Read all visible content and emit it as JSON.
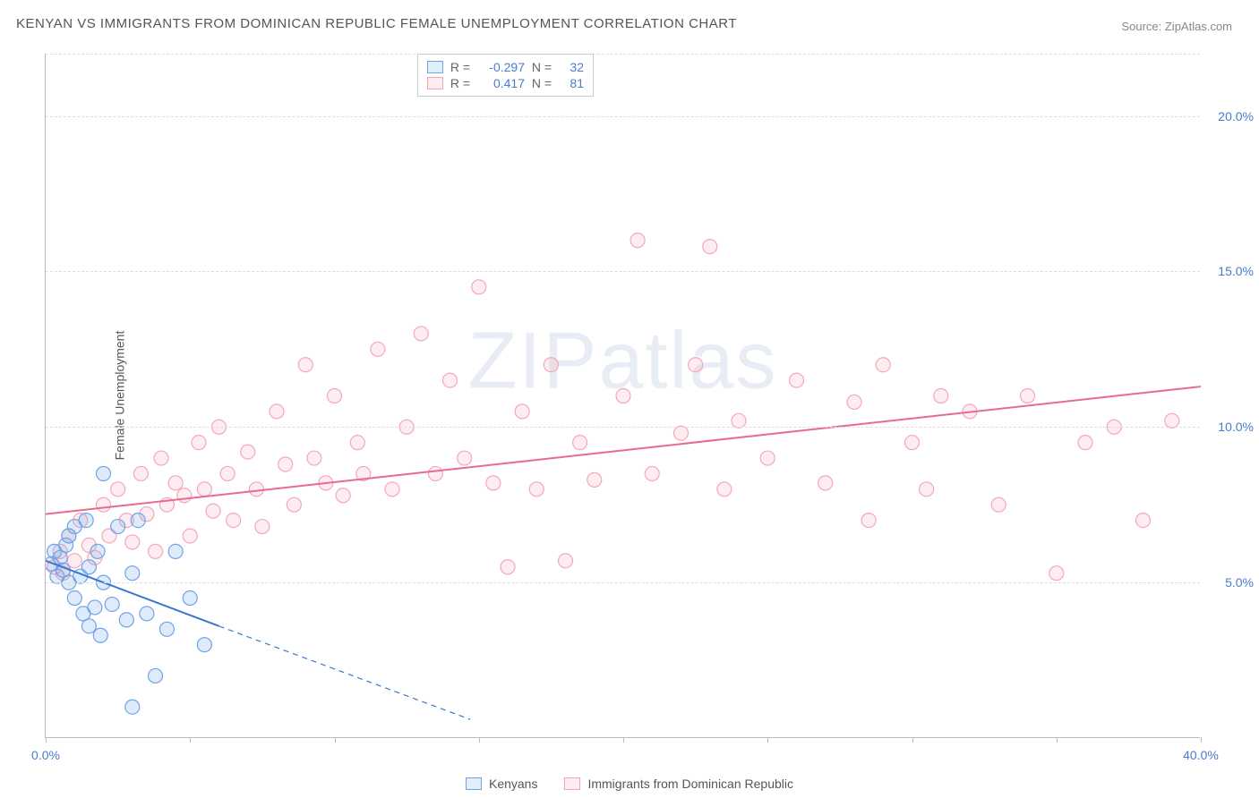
{
  "title": "KENYAN VS IMMIGRANTS FROM DOMINICAN REPUBLIC FEMALE UNEMPLOYMENT CORRELATION CHART",
  "source": "Source: ZipAtlas.com",
  "watermark": "ZIPatlas",
  "ylabel": "Female Unemployment",
  "chart": {
    "type": "scatter",
    "xlim": [
      0,
      40
    ],
    "ylim": [
      0,
      22
    ],
    "grid_color": "#dddddd",
    "axis_color": "#bbbbbb",
    "background_color": "#ffffff",
    "x_ticks": [
      0,
      5,
      10,
      15,
      20,
      25,
      30,
      35,
      40
    ],
    "x_tick_labels": {
      "0": "0.0%",
      "40": "40.0%"
    },
    "y_ticks": [
      5,
      10,
      15,
      20
    ],
    "y_tick_labels": {
      "5": "5.0%",
      "10": "10.0%",
      "15": "15.0%",
      "20": "20.0%"
    },
    "marker_radius": 8,
    "marker_stroke_width": 1.2,
    "marker_fill_opacity": 0.22,
    "line_width": 2,
    "title_fontsize": 15,
    "label_fontsize": 14,
    "tick_fontsize": 14,
    "tick_color": "#4a7bd0"
  },
  "series": {
    "kenyans": {
      "label": "Kenyans",
      "color": "#6fa3e8",
      "line_color": "#3a76d0",
      "R": "-0.297",
      "N": "32",
      "trend": {
        "x1": 0,
        "y1": 5.7,
        "x2": 6,
        "y2": 3.6,
        "dashed_extend_x2": 14.7,
        "dashed_extend_y2": 0.6
      },
      "points": [
        [
          0.2,
          5.6
        ],
        [
          0.3,
          6.0
        ],
        [
          0.4,
          5.2
        ],
        [
          0.5,
          5.8
        ],
        [
          0.6,
          5.4
        ],
        [
          0.7,
          6.2
        ],
        [
          0.8,
          5.0
        ],
        [
          0.8,
          6.5
        ],
        [
          1.0,
          4.5
        ],
        [
          1.0,
          6.8
        ],
        [
          1.2,
          5.2
        ],
        [
          1.3,
          4.0
        ],
        [
          1.4,
          7.0
        ],
        [
          1.5,
          3.6
        ],
        [
          1.5,
          5.5
        ],
        [
          1.7,
          4.2
        ],
        [
          1.8,
          6.0
        ],
        [
          1.9,
          3.3
        ],
        [
          2.0,
          5.0
        ],
        [
          2.0,
          8.5
        ],
        [
          2.3,
          4.3
        ],
        [
          2.5,
          6.8
        ],
        [
          2.8,
          3.8
        ],
        [
          3.0,
          5.3
        ],
        [
          3.2,
          7.0
        ],
        [
          3.5,
          4.0
        ],
        [
          3.8,
          2.0
        ],
        [
          4.2,
          3.5
        ],
        [
          4.5,
          6.0
        ],
        [
          5.0,
          4.5
        ],
        [
          5.5,
          3.0
        ],
        [
          3.0,
          1.0
        ]
      ]
    },
    "dominican": {
      "label": "Immigrants from Dominican Republic",
      "color": "#f4a7bb",
      "line_color": "#e86a8f",
      "R": "0.417",
      "N": "81",
      "trend": {
        "x1": 0,
        "y1": 7.2,
        "x2": 40,
        "y2": 11.3,
        "dashed_extend_x2": null,
        "dashed_extend_y2": null
      },
      "points": [
        [
          0.3,
          5.5
        ],
        [
          0.5,
          6.0
        ],
        [
          0.6,
          5.3
        ],
        [
          0.8,
          6.5
        ],
        [
          1.0,
          5.7
        ],
        [
          1.2,
          7.0
        ],
        [
          1.5,
          6.2
        ],
        [
          1.7,
          5.8
        ],
        [
          2.0,
          7.5
        ],
        [
          2.2,
          6.5
        ],
        [
          2.5,
          8.0
        ],
        [
          2.8,
          7.0
        ],
        [
          3.0,
          6.3
        ],
        [
          3.3,
          8.5
        ],
        [
          3.5,
          7.2
        ],
        [
          3.8,
          6.0
        ],
        [
          4.0,
          9.0
        ],
        [
          4.2,
          7.5
        ],
        [
          4.5,
          8.2
        ],
        [
          4.8,
          7.8
        ],
        [
          5.0,
          6.5
        ],
        [
          5.3,
          9.5
        ],
        [
          5.5,
          8.0
        ],
        [
          5.8,
          7.3
        ],
        [
          6.0,
          10.0
        ],
        [
          6.3,
          8.5
        ],
        [
          6.5,
          7.0
        ],
        [
          7.0,
          9.2
        ],
        [
          7.3,
          8.0
        ],
        [
          7.5,
          6.8
        ],
        [
          8.0,
          10.5
        ],
        [
          8.3,
          8.8
        ],
        [
          8.6,
          7.5
        ],
        [
          9.0,
          12.0
        ],
        [
          9.3,
          9.0
        ],
        [
          9.7,
          8.2
        ],
        [
          10.0,
          11.0
        ],
        [
          10.3,
          7.8
        ],
        [
          10.8,
          9.5
        ],
        [
          11.0,
          8.5
        ],
        [
          11.5,
          12.5
        ],
        [
          12.0,
          8.0
        ],
        [
          12.5,
          10.0
        ],
        [
          13.0,
          13.0
        ],
        [
          13.5,
          8.5
        ],
        [
          14.0,
          11.5
        ],
        [
          14.5,
          9.0
        ],
        [
          15.0,
          14.5
        ],
        [
          15.5,
          8.2
        ],
        [
          16.0,
          5.5
        ],
        [
          16.5,
          10.5
        ],
        [
          17.0,
          8.0
        ],
        [
          17.5,
          12.0
        ],
        [
          18.0,
          5.7
        ],
        [
          18.5,
          9.5
        ],
        [
          19.0,
          8.3
        ],
        [
          20.0,
          11.0
        ],
        [
          20.5,
          16.0
        ],
        [
          21.0,
          8.5
        ],
        [
          22.0,
          9.8
        ],
        [
          22.5,
          12.0
        ],
        [
          23.0,
          15.8
        ],
        [
          23.5,
          8.0
        ],
        [
          24.0,
          10.2
        ],
        [
          25.0,
          9.0
        ],
        [
          26.0,
          11.5
        ],
        [
          27.0,
          8.2
        ],
        [
          28.0,
          10.8
        ],
        [
          28.5,
          7.0
        ],
        [
          29.0,
          12.0
        ],
        [
          30.0,
          9.5
        ],
        [
          30.5,
          8.0
        ],
        [
          31.0,
          11.0
        ],
        [
          32.0,
          10.5
        ],
        [
          33.0,
          7.5
        ],
        [
          34.0,
          11.0
        ],
        [
          35.0,
          5.3
        ],
        [
          36.0,
          9.5
        ],
        [
          37.0,
          10.0
        ],
        [
          38.0,
          7.0
        ],
        [
          39.0,
          10.2
        ]
      ]
    }
  },
  "stats_box": {
    "rows": [
      {
        "swatch": "kenyans",
        "R_label": "R =",
        "R_val": "-0.297",
        "N_label": "N =",
        "N_val": "32"
      },
      {
        "swatch": "dominican",
        "R_label": "R =",
        "R_val": "0.417",
        "N_label": "N =",
        "N_val": "81"
      }
    ]
  },
  "legend": {
    "items": [
      {
        "swatch": "kenyans",
        "label": "Kenyans"
      },
      {
        "swatch": "dominican",
        "label": "Immigrants from Dominican Republic"
      }
    ]
  }
}
